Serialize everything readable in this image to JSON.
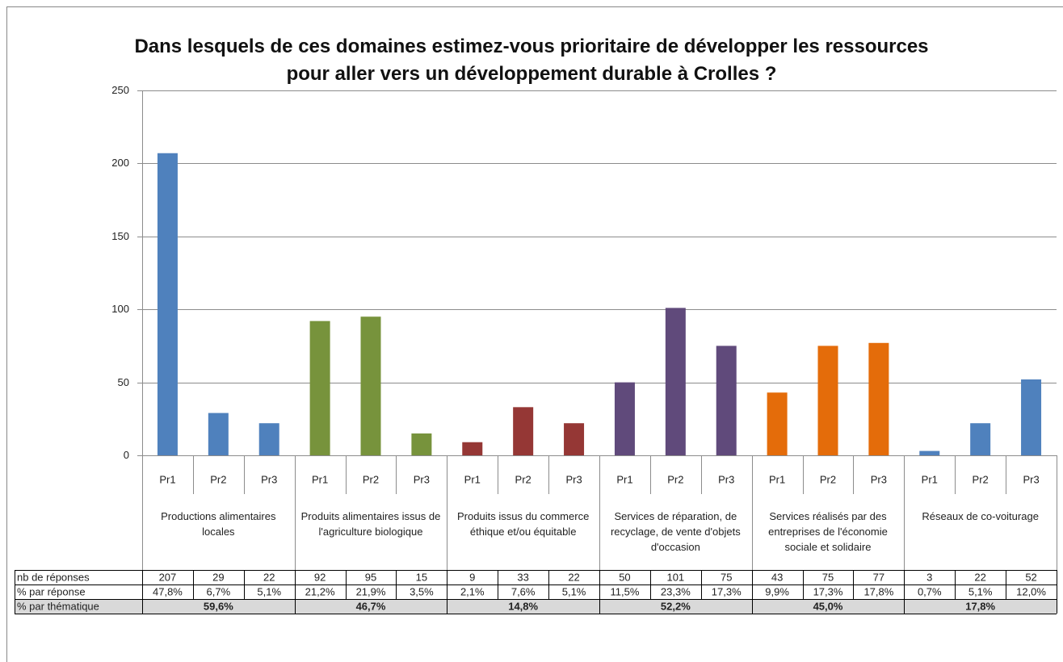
{
  "chart_data": {
    "type": "bar",
    "title": [
      "Dans lesquels de ces domaines estimez-vous prioritaire de développer les ressources",
      "pour aller vers un développement durable à Crolles ?"
    ],
    "categories": [
      "Pr1",
      "Pr2",
      "Pr3",
      "Pr1",
      "Pr2",
      "Pr3",
      "Pr1",
      "Pr2",
      "Pr3",
      "Pr1",
      "Pr2",
      "Pr3",
      "Pr1",
      "Pr2",
      "Pr3",
      "Pr1",
      "Pr2",
      "Pr3"
    ],
    "groups": [
      {
        "name": "Productions alimentaires locales",
        "color": "#4f81bd"
      },
      {
        "name": "Produits alimentaires issus de l'agriculture biologique",
        "color": "#77933c"
      },
      {
        "name": "Produits issus du commerce éthique et/ou équitable",
        "color": "#953735"
      },
      {
        "name": "Services de réparation, de recyclage, de vente d'objets d'occasion",
        "color": "#604a7b"
      },
      {
        "name": "Services réalisés par des entreprises de l'économie sociale et solidaire",
        "color": "#e46c0a"
      },
      {
        "name": "Réseaux de co-voiturage",
        "color": "#4f81bd"
      }
    ],
    "values": [
      207,
      29,
      22,
      92,
      95,
      15,
      9,
      33,
      22,
      50,
      101,
      75,
      43,
      75,
      77,
      3,
      22,
      52
    ],
    "ylim": [
      0,
      250
    ],
    "yticks": [
      0,
      50,
      100,
      150,
      200,
      250
    ],
    "grid": true,
    "data_table": {
      "row_labels": [
        "nb de réponses",
        "% par réponse",
        "% par thématique"
      ],
      "pct_response": [
        "47,8%",
        "6,7%",
        "5,1%",
        "21,2%",
        "21,9%",
        "3,5%",
        "2,1%",
        "7,6%",
        "5,1%",
        "11,5%",
        "23,3%",
        "17,3%",
        "9,9%",
        "17,3%",
        "17,8%",
        "0,7%",
        "5,1%",
        "12,0%"
      ],
      "pct_theme": [
        "59,6%",
        "46,7%",
        "14,8%",
        "52,2%",
        "45,0%",
        "17,8%"
      ]
    }
  }
}
